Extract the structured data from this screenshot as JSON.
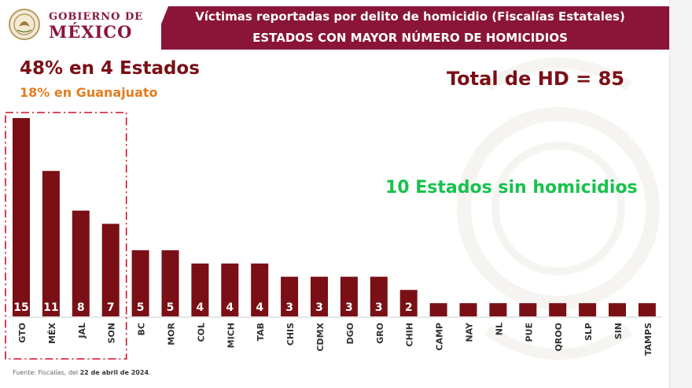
{
  "header": {
    "logo_line1": "GOBIERNO DE",
    "logo_line2": "MÉXICO",
    "title": "Víctimas reportadas por delito de homicidio (Fiscalías Estatales)",
    "subtitle": "ESTADOS CON MAYOR NÚMERO DE HOMICIDIOS"
  },
  "annotations": {
    "headline": "48% en 4 Estados",
    "subheadline": "18% en Guanajuato",
    "total": "Total de HD = 85",
    "no_homicides": "10 Estados sin homicidios"
  },
  "source": {
    "prefix": "Fuente: Fiscalías, del ",
    "date": "22 de abril de 2024",
    "suffix": "."
  },
  "colors": {
    "bar": "#7a0f16",
    "banner": "#8a1538",
    "highlight_box": "#d1102a",
    "headline": "#7a0f16",
    "subhead": "#e57c1f",
    "no_homicides": "#17c24d"
  },
  "chart_data": {
    "type": "bar",
    "categories": [
      "GTO",
      "MÉX",
      "JAL",
      "SON",
      "BC",
      "MOR",
      "COL",
      "MICH",
      "TAB",
      "CHIS",
      "CDMX",
      "DGO",
      "GRO",
      "CHIH",
      "CAMP",
      "NAY",
      "NL",
      "PUE",
      "QROO",
      "SLP",
      "SIN",
      "TAMPS"
    ],
    "values": [
      15,
      11,
      8,
      7,
      5,
      5,
      4,
      4,
      4,
      3,
      3,
      3,
      3,
      2,
      1,
      1,
      1,
      1,
      1,
      1,
      1,
      1
    ],
    "value_labels": [
      "15",
      "11",
      "8",
      "7",
      "5",
      "5",
      "4",
      "4",
      "4",
      "3",
      "3",
      "3",
      "3",
      "2",
      "",
      "",
      "",
      "",
      "",
      "",
      "",
      ""
    ],
    "highlighted_categories": [
      "GTO",
      "MÉX",
      "JAL",
      "SON"
    ],
    "title": "",
    "xlabel": "",
    "ylabel": "",
    "ylim": [
      0,
      15
    ],
    "grid": false,
    "legend": "none"
  }
}
